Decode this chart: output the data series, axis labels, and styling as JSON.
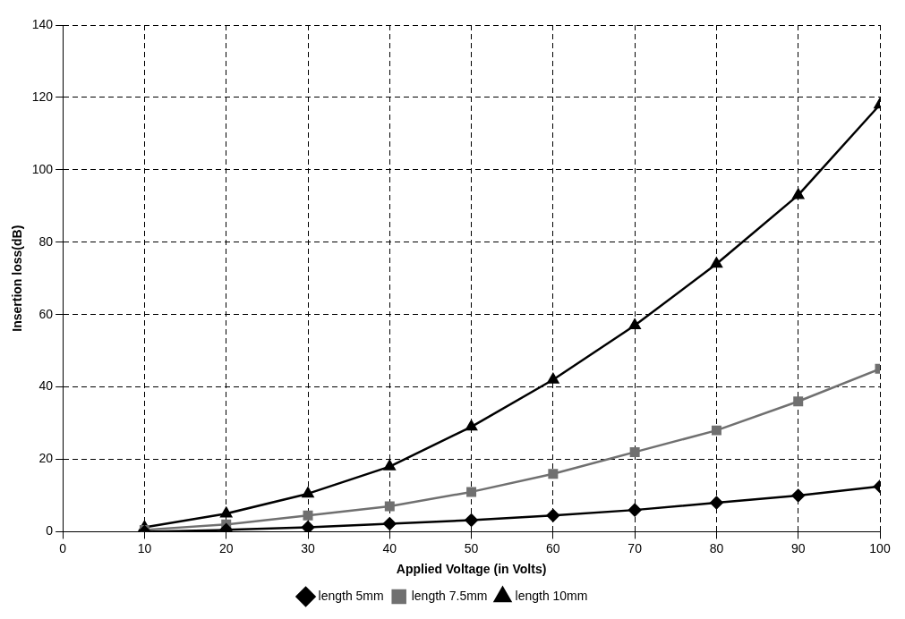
{
  "chart_data": {
    "type": "line",
    "xlabel": "Applied Voltage (in Volts)",
    "ylabel": "Insertion loss(dB)",
    "x": [
      10,
      20,
      30,
      40,
      50,
      60,
      70,
      80,
      90,
      100
    ],
    "series": [
      {
        "name": "length 5mm",
        "color": "#000000",
        "marker": "diamond",
        "values": [
          0,
          0.5,
          1.2,
          2.2,
          3.2,
          4.5,
          6,
          8,
          10,
          12.5
        ]
      },
      {
        "name": "length 7.5mm",
        "color": "#707070",
        "marker": "square",
        "values": [
          0.5,
          2,
          4.5,
          7,
          11,
          16,
          22,
          28,
          36,
          45
        ]
      },
      {
        "name": "length 10mm",
        "color": "#000000",
        "marker": "triangle",
        "values": [
          1.2,
          5,
          10.5,
          18,
          29,
          42,
          57,
          74,
          93,
          118
        ]
      }
    ],
    "xlim": [
      0,
      100
    ],
    "xticks": [
      0,
      10,
      20,
      30,
      40,
      50,
      60,
      70,
      80,
      90,
      100
    ],
    "ylim": [
      0,
      140
    ],
    "yticks": [
      0,
      20,
      40,
      60,
      80,
      100,
      120,
      140
    ],
    "grid": true,
    "legend": "bottom",
    "line_style": "solid"
  }
}
